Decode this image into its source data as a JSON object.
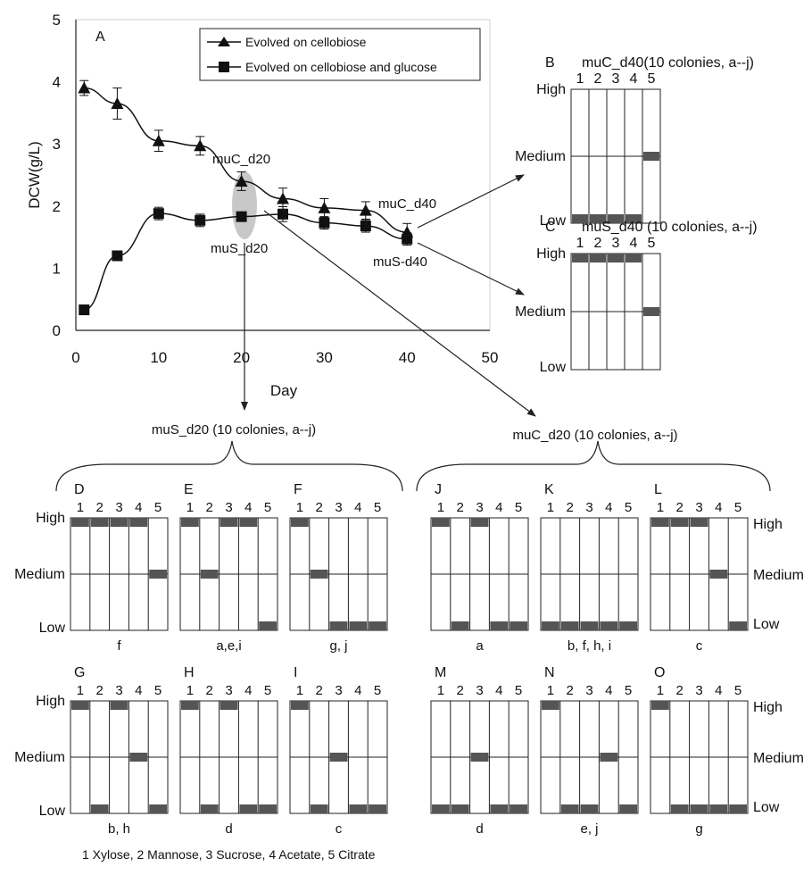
{
  "chart_data": [
    {
      "panel": "A",
      "type": "line",
      "xlabel": "Day",
      "ylabel": "DCW(g/L)",
      "xlim": [
        0,
        50
      ],
      "ylim": [
        0,
        5
      ],
      "x_ticks": [
        "0",
        "10",
        "20",
        "30",
        "40",
        "50"
      ],
      "y_ticks": [
        "0",
        "1",
        "2",
        "3",
        "4",
        "5"
      ],
      "legend_position": "top-center",
      "series": [
        {
          "name": "Evolved on cellobiose",
          "marker": "triangle",
          "x": [
            1,
            5,
            10,
            15,
            20,
            25,
            30,
            35,
            40
          ],
          "y": [
            3.9,
            3.65,
            3.05,
            2.97,
            2.4,
            2.12,
            1.97,
            1.93,
            1.58
          ],
          "err": [
            0.12,
            0.25,
            0.17,
            0.15,
            0.15,
            0.17,
            0.15,
            0.14,
            0.14
          ]
        },
        {
          "name": "Evolved on cellobiose and glucose",
          "marker": "square",
          "x": [
            1,
            5,
            10,
            15,
            20,
            25,
            30,
            35,
            40
          ],
          "y": [
            0.33,
            1.2,
            1.88,
            1.77,
            1.83,
            1.87,
            1.73,
            1.68,
            1.47
          ],
          "err": [
            0.03,
            0.06,
            0.1,
            0.1,
            0.06,
            0.12,
            0.1,
            0.1,
            0.1
          ]
        }
      ],
      "annotations": [
        "muC_d20",
        "muC_d40",
        "muS_d20",
        "muS-d40"
      ]
    },
    {
      "panel": "B",
      "type": "heatmap",
      "title": "muC_d40(10 colonies, a--j)",
      "columns": [
        "1",
        "2",
        "3",
        "4",
        "5"
      ],
      "levels": [
        "High",
        "Medium",
        "Low"
      ],
      "values": [
        "Low",
        "Low",
        "Low",
        "Low",
        "Medium"
      ],
      "colonies": ""
    },
    {
      "panel": "C",
      "type": "heatmap",
      "title": "muS_d40 (10 colonies, a--j)",
      "columns": [
        "1",
        "2",
        "3",
        "4",
        "5"
      ],
      "levels": [
        "High",
        "Medium",
        "Low"
      ],
      "values": [
        "High",
        "High",
        "High",
        "High",
        "Medium"
      ],
      "colonies": ""
    },
    {
      "panel": "D",
      "type": "heatmap",
      "group": "muS_d20 (10 colonies, a--j)",
      "columns": [
        "1",
        "2",
        "3",
        "4",
        "5"
      ],
      "levels": [
        "High",
        "Medium",
        "Low"
      ],
      "values": [
        "High",
        "High",
        "High",
        "High",
        "Medium"
      ],
      "colonies": "f"
    },
    {
      "panel": "E",
      "type": "heatmap",
      "group": "muS_d20 (10 colonies, a--j)",
      "columns": [
        "1",
        "2",
        "3",
        "4",
        "5"
      ],
      "levels": [
        "High",
        "Medium",
        "Low"
      ],
      "values": [
        "High",
        "Medium",
        "High",
        "High",
        "Low"
      ],
      "colonies": "a,e,i"
    },
    {
      "panel": "F",
      "type": "heatmap",
      "group": "muS_d20 (10 colonies, a--j)",
      "columns": [
        "1",
        "2",
        "3",
        "4",
        "5"
      ],
      "levels": [
        "High",
        "Medium",
        "Low"
      ],
      "values": [
        "High",
        "Medium",
        "Low",
        "Low",
        "Low"
      ],
      "colonies": "g, j"
    },
    {
      "panel": "G",
      "type": "heatmap",
      "group": "muS_d20 (10 colonies, a--j)",
      "columns": [
        "1",
        "2",
        "3",
        "4",
        "5"
      ],
      "levels": [
        "High",
        "Medium",
        "Low"
      ],
      "values": [
        "High",
        "Low",
        "High",
        "Medium",
        "Low"
      ],
      "colonies": "b, h"
    },
    {
      "panel": "H",
      "type": "heatmap",
      "group": "muS_d20 (10 colonies, a--j)",
      "columns": [
        "1",
        "2",
        "3",
        "4",
        "5"
      ],
      "levels": [
        "High",
        "Medium",
        "Low"
      ],
      "values": [
        "High",
        "Low",
        "High",
        "Low",
        "Low"
      ],
      "colonies": "d"
    },
    {
      "panel": "I",
      "type": "heatmap",
      "group": "muS_d20 (10 colonies, a--j)",
      "columns": [
        "1",
        "2",
        "3",
        "4",
        "5"
      ],
      "levels": [
        "High",
        "Medium",
        "Low"
      ],
      "values": [
        "High",
        "Low",
        "Medium",
        "Low",
        "Low"
      ],
      "colonies": "c"
    },
    {
      "panel": "J",
      "type": "heatmap",
      "group": "muC_d20 (10 colonies, a--j)",
      "columns": [
        "1",
        "2",
        "3",
        "4",
        "5"
      ],
      "levels": [
        "High",
        "Medium",
        "Low"
      ],
      "values": [
        "High",
        "Low",
        "High",
        "Low",
        "Low"
      ],
      "colonies": "a"
    },
    {
      "panel": "K",
      "type": "heatmap",
      "group": "muC_d20 (10 colonies, a--j)",
      "columns": [
        "1",
        "2",
        "3",
        "4",
        "5"
      ],
      "levels": [
        "High",
        "Medium",
        "Low"
      ],
      "values": [
        "Low",
        "Low",
        "Low",
        "Low",
        "Low"
      ],
      "colonies": "b, f, h, i"
    },
    {
      "panel": "L",
      "type": "heatmap",
      "group": "muC_d20 (10 colonies, a--j)",
      "columns": [
        "1",
        "2",
        "3",
        "4",
        "5"
      ],
      "levels": [
        "High",
        "Medium",
        "Low"
      ],
      "values": [
        "High",
        "High",
        "High",
        "Medium",
        "Low"
      ],
      "colonies": "c"
    },
    {
      "panel": "M",
      "type": "heatmap",
      "group": "muC_d20 (10 colonies, a--j)",
      "columns": [
        "1",
        "2",
        "3",
        "4",
        "5"
      ],
      "levels": [
        "High",
        "Medium",
        "Low"
      ],
      "values": [
        "Low",
        "Low",
        "Medium",
        "Low",
        "Low"
      ],
      "colonies": "d"
    },
    {
      "panel": "N",
      "type": "heatmap",
      "group": "muC_d20 (10 colonies, a--j)",
      "columns": [
        "1",
        "2",
        "3",
        "4",
        "5"
      ],
      "levels": [
        "High",
        "Medium",
        "Low"
      ],
      "values": [
        "High",
        "Low",
        "Low",
        "Medium",
        "Low"
      ],
      "colonies": "e, j"
    },
    {
      "panel": "O",
      "type": "heatmap",
      "group": "muC_d20 (10 colonies, a--j)",
      "columns": [
        "1",
        "2",
        "3",
        "4",
        "5"
      ],
      "levels": [
        "High",
        "Medium",
        "Low"
      ],
      "values": [
        "High",
        "Low",
        "Low",
        "Low",
        "Low"
      ],
      "colonies": "g"
    }
  ],
  "group_labels": {
    "muS_d20": "muS_d20 (10 colonies, a--j)",
    "muC_d20": "muC_d20 (10 colonies, a--j)"
  },
  "footnote": "1 Xylose, 2 Mannose, 3 Sucrose, 4 Acetate, 5 Citrate",
  "colors": {
    "line": "#111111",
    "bar": "#555555",
    "highlight": "#c8c8c8"
  }
}
